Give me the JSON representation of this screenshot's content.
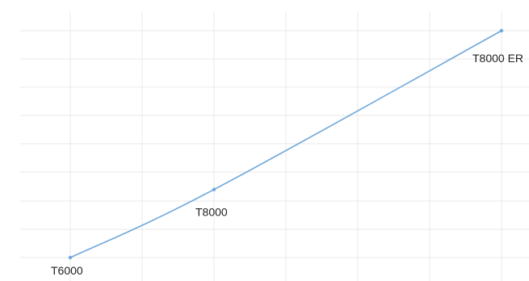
{
  "chart_data": {
    "type": "line",
    "title": "",
    "xlabel": "",
    "ylabel": "",
    "grid": true,
    "legend": "none",
    "series": [
      {
        "color": "#6fa8dc",
        "points": [
          {
            "label": "T6000",
            "x": 0,
            "y": 0
          },
          {
            "label": "T8000",
            "x": 1,
            "y": 0.3
          },
          {
            "label": "T8000 ER",
            "x": 3,
            "y": 1
          }
        ]
      }
    ]
  }
}
